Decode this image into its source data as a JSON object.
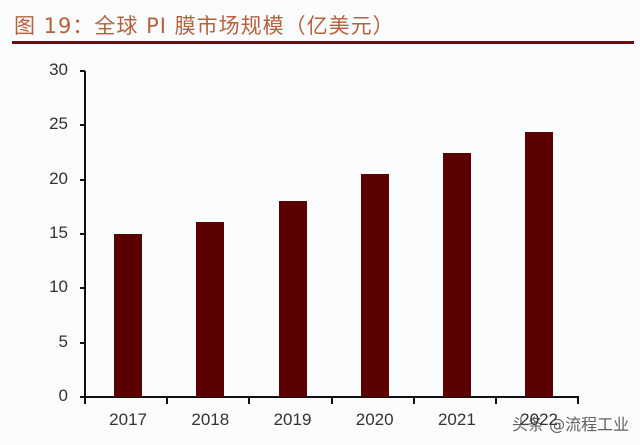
{
  "title": "图 19：全球 PI 膜市场规模（亿美元）",
  "watermark": "头条 @流程工业",
  "colors": {
    "bar": "#5a0000",
    "title": "#b5613d",
    "rule": "#6a0d14"
  },
  "chart_data": {
    "type": "bar",
    "title": "图 19：全球 PI 膜市场规模（亿美元）",
    "xlabel": "",
    "ylabel": "",
    "categories": [
      "2017",
      "2018",
      "2019",
      "2020",
      "2021",
      "2022"
    ],
    "values": [
      15.0,
      16.1,
      18.0,
      20.5,
      22.5,
      24.4
    ],
    "ylim": [
      0,
      30
    ],
    "yticks": [
      "0",
      "5",
      "10",
      "15",
      "20",
      "25",
      "30"
    ],
    "grid": false,
    "legend": null,
    "unit": "亿美元"
  }
}
